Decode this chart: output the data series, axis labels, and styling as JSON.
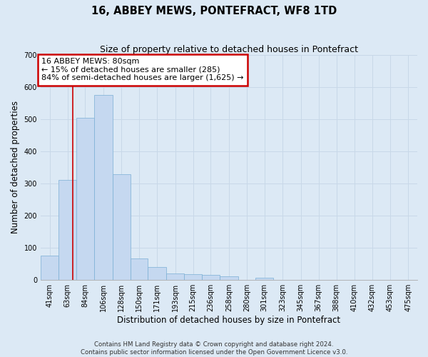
{
  "title": "16, ABBEY MEWS, PONTEFRACT, WF8 1TD",
  "subtitle": "Size of property relative to detached houses in Pontefract",
  "xlabel": "Distribution of detached houses by size in Pontefract",
  "ylabel": "Number of detached properties",
  "bin_labels": [
    "41sqm",
    "63sqm",
    "84sqm",
    "106sqm",
    "128sqm",
    "150sqm",
    "171sqm",
    "193sqm",
    "215sqm",
    "236sqm",
    "258sqm",
    "280sqm",
    "301sqm",
    "323sqm",
    "345sqm",
    "367sqm",
    "388sqm",
    "410sqm",
    "432sqm",
    "453sqm",
    "475sqm"
  ],
  "bin_left_edges": [
    41,
    63,
    84,
    106,
    128,
    150,
    171,
    193,
    215,
    236,
    258,
    280,
    301,
    323,
    345,
    367,
    388,
    410,
    432,
    453,
    475
  ],
  "bar_heights": [
    75,
    310,
    505,
    575,
    328,
    68,
    40,
    20,
    18,
    15,
    12,
    0,
    8,
    0,
    0,
    0,
    0,
    0,
    0,
    0,
    0
  ],
  "bar_color": "#c5d8f0",
  "bar_edge_color": "#7bafd4",
  "property_size": 80,
  "property_line_color": "#cc0000",
  "annotation_text": "16 ABBEY MEWS: 80sqm\n← 15% of detached houses are smaller (285)\n84% of semi-detached houses are larger (1,625) →",
  "annotation_box_color": "#ffffff",
  "annotation_box_edge_color": "#cc0000",
  "ylim": [
    0,
    700
  ],
  "yticks": [
    0,
    100,
    200,
    300,
    400,
    500,
    600,
    700
  ],
  "grid_color": "#c8d8e8",
  "background_color": "#dce9f5",
  "footer_line1": "Contains HM Land Registry data © Crown copyright and database right 2024.",
  "footer_line2": "Contains public sector information licensed under the Open Government Licence v3.0.",
  "title_fontsize": 10.5,
  "subtitle_fontsize": 9,
  "axis_label_fontsize": 8.5,
  "tick_fontsize": 7,
  "footer_fontsize": 6.2,
  "annotation_fontsize": 8
}
